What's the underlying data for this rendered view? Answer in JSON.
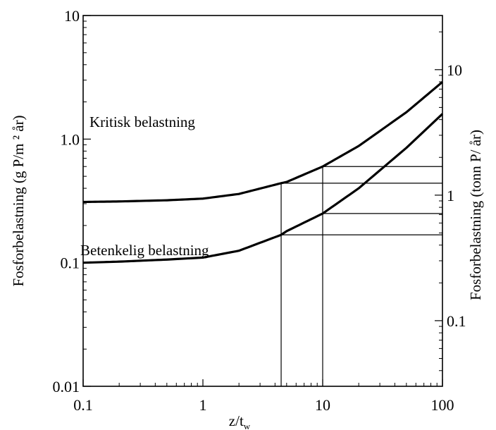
{
  "chart_data": {
    "type": "line",
    "title": "",
    "xscale": "log",
    "yscale": "log",
    "xlim": [
      0.1,
      100
    ],
    "ylim": [
      0.01,
      10
    ],
    "y2lim": [
      0.03,
      27
    ],
    "x_ticks": [
      {
        "value": 0.1,
        "label": "0.1"
      },
      {
        "value": 1,
        "label": "1"
      },
      {
        "value": 10,
        "label": "10"
      },
      {
        "value": 100,
        "label": "100"
      }
    ],
    "y_ticks": [
      {
        "value": 0.01,
        "label": "0.01"
      },
      {
        "value": 0.1,
        "label": "0.1"
      },
      {
        "value": 1.0,
        "label": "1.0"
      },
      {
        "value": 10,
        "label": "10"
      }
    ],
    "y2_ticks": [
      {
        "value": 0.1,
        "label": "0.1"
      },
      {
        "value": 1,
        "label": "1"
      },
      {
        "value": 10,
        "label": "10"
      }
    ],
    "xlabel_main": "z/t",
    "xlabel_sub": "w",
    "ylabel": "Fosforbelastning (g P/m ² år)",
    "y2label": "Fosforbelastning (tonn P/ år)",
    "grid": false,
    "series": [
      {
        "name": "Kritisk belastning",
        "x": [
          0.1,
          0.2,
          0.5,
          1,
          2,
          4.5,
          5,
          10,
          20,
          50,
          100
        ],
        "y": [
          0.31,
          0.313,
          0.32,
          0.33,
          0.36,
          0.44,
          0.45,
          0.6,
          0.88,
          1.65,
          2.9
        ]
      },
      {
        "name": "Betenkelig belastning",
        "x": [
          0.1,
          0.2,
          0.5,
          1,
          2,
          4.5,
          5,
          10,
          20,
          50,
          100
        ],
        "y": [
          0.1,
          0.102,
          0.106,
          0.11,
          0.125,
          0.168,
          0.18,
          0.25,
          0.4,
          0.85,
          1.6
        ]
      }
    ],
    "reference_lines": {
      "vertical_x": [
        4.5,
        10
      ],
      "horizontal_y": [
        0.6,
        0.44,
        0.25,
        0.168
      ]
    }
  }
}
